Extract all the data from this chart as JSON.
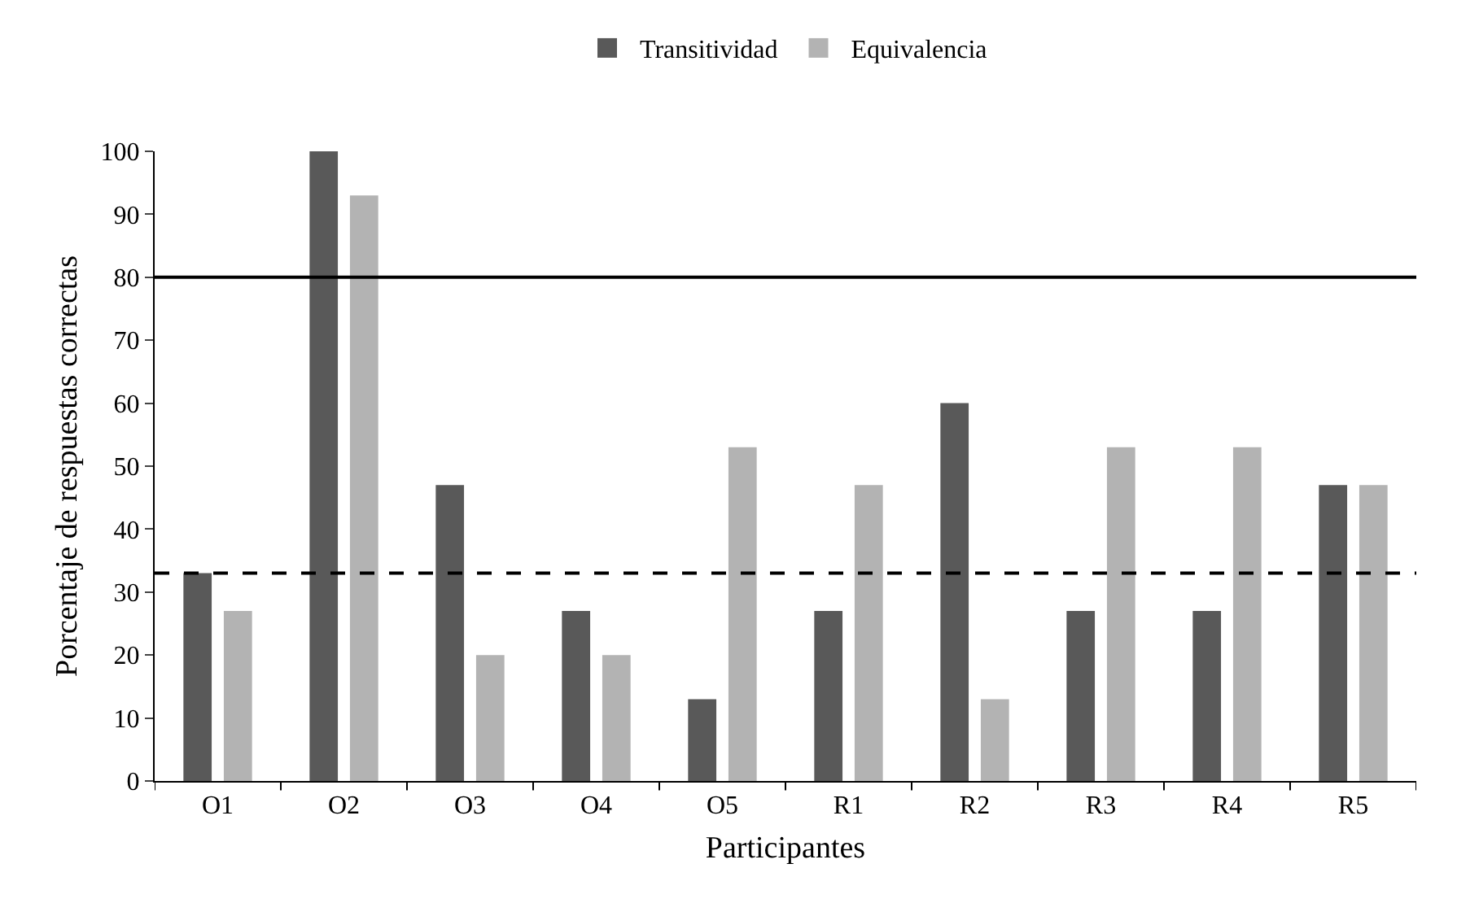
{
  "chart_data": {
    "type": "bar",
    "xlabel": "Participantes",
    "ylabel": "Porcentaje de respuestas correctas",
    "categories": [
      "O1",
      "O2",
      "O3",
      "O4",
      "O5",
      "R1",
      "R2",
      "R3",
      "R4",
      "R5"
    ],
    "series": [
      {
        "name": "Transitividad",
        "color": "#595959",
        "values": [
          33,
          100,
          47,
          27,
          13,
          27,
          60,
          27,
          27,
          47
        ]
      },
      {
        "name": "Equivalencia",
        "color": "#b3b3b3",
        "values": [
          27,
          93,
          20,
          20,
          53,
          47,
          13,
          53,
          53,
          47
        ]
      }
    ],
    "ylim": [
      0,
      100
    ],
    "yticks": [
      0,
      10,
      20,
      30,
      40,
      50,
      60,
      70,
      80,
      90,
      100
    ],
    "ref_lines": [
      {
        "axis": "y",
        "value": 80,
        "color": "#000000",
        "line_style": "solid"
      },
      {
        "axis": "y",
        "value": 33,
        "color": "#000000",
        "line_style": "dashed"
      }
    ],
    "legend": "top",
    "grid": false
  }
}
